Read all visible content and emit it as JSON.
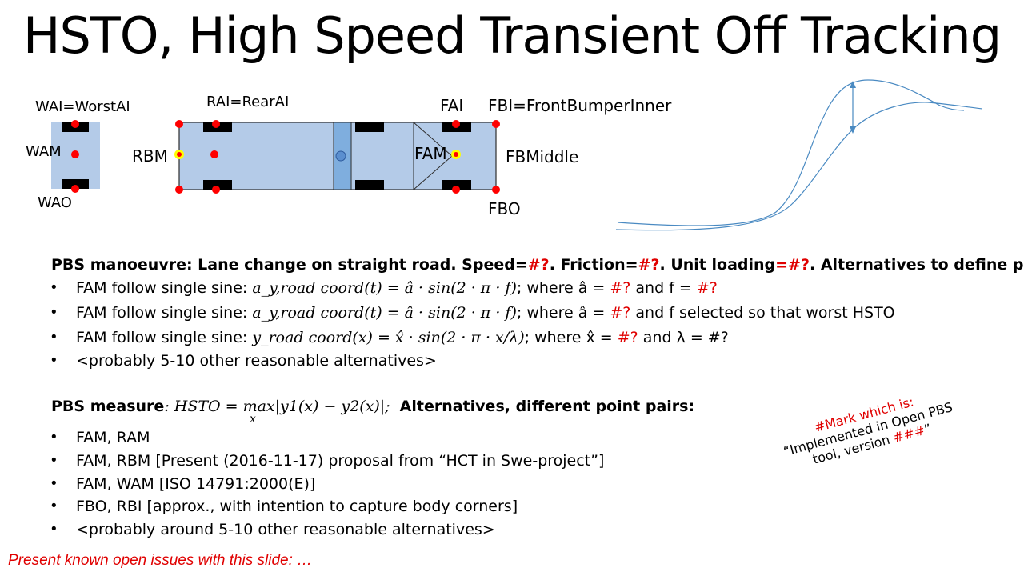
{
  "title": "HSTO, High Speed Transient Off Tracking",
  "vehicle_labels": {
    "wai": "WAI=WorstAI",
    "wam": "WAM",
    "wao": "WAO",
    "rai": "RAI=RearAI",
    "rbm": "RBM",
    "fai": "FAI",
    "fbi": "FBI=FrontBumperInner",
    "fam": "FAM",
    "fbmiddle": "FBMiddle",
    "fbo": "FBO"
  },
  "manoeuvre": {
    "heading_a": "PBS manoeuvre: Lane change on straight road. Speed=",
    "speed_val": "#?",
    "heading_b": ". Friction=",
    "friction_val": "#?",
    "heading_c": ". Unit loading",
    "loading_val": "=#?",
    "heading_d": ". Alternatives to define path:",
    "items": [
      {
        "prefix": "FAM follow single sine: ",
        "formula": "a_y,road coord(t) = â · sin(2 · π · f)",
        "mid": "; where â = ",
        "val1": "#?",
        "and": " and f = ",
        "val2": "#?",
        "tail": ""
      },
      {
        "prefix": "FAM follow single sine: ",
        "formula": "a_y,road coord(t) = â · sin(2 · π · f)",
        "mid": "; where â = ",
        "val1": "#?",
        "and": " and f ",
        "val2": "",
        "tail": "selected so that worst HSTO"
      },
      {
        "prefix": "FAM follow single sine: ",
        "formula": "y_road coord(x) = x̂ · sin(2 · π · x/λ)",
        "mid": "; where x̂ = ",
        "val1": "#?",
        "and": " and λ = #?",
        "val2": "",
        "tail": ""
      }
    ],
    "more": "<probably 5-10 other reasonable alternatives>"
  },
  "measure": {
    "label": "PBS measure",
    "formula": ": HSTO = max|y1(x) − y2(x)|;",
    "max_sub": "x",
    "alternatives": "Alternatives, different point pairs:",
    "items": [
      "FAM, RAM",
      "FAM, RBM [Present (2016-11-17)  proposal from “HCT in Swe-project”]",
      "FAM, WAM [ISO 14791:2000(E)]",
      "FBO, RBI [approx., with intention to capture body corners]",
      "<probably around 5-10 other reasonable alternatives>"
    ]
  },
  "mark_note": {
    "line1": "#Mark which is:",
    "line2": "“Implemented in Open PBS tool, version ",
    "version": "###",
    "close": "”"
  },
  "footer": "Present known open issues with this slide: …",
  "colors": {
    "body": "#b4cbe8",
    "dot": "#ff0000",
    "yellow": "#ffff00",
    "curve": "#4a8ac2"
  }
}
